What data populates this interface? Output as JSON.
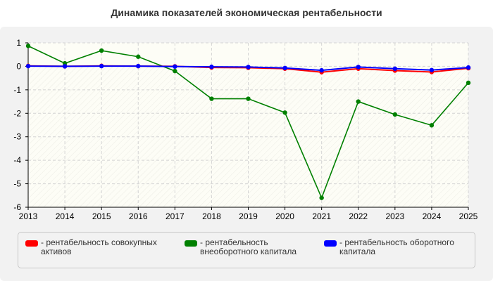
{
  "chart_data": {
    "type": "line",
    "title": "Динамика показателей экономическая рентабельности",
    "x": [
      "2013",
      "2014",
      "2015",
      "2016",
      "2017",
      "2018",
      "2019",
      "2020",
      "2021",
      "2022",
      "2023",
      "2024",
      "2025"
    ],
    "ylim": [
      -6,
      1
    ],
    "yticks": [
      1,
      0,
      -1,
      -2,
      -3,
      -4,
      -5,
      -6
    ],
    "grid": true,
    "legend_position": "bottom",
    "series": [
      {
        "name": "- рентабельность совокупных активов",
        "color": "#ff0000",
        "values": [
          0.02,
          0.0,
          0.02,
          0.01,
          0.0,
          -0.05,
          -0.06,
          -0.1,
          -0.25,
          -0.1,
          -0.18,
          -0.24,
          -0.08
        ]
      },
      {
        "name": "- рентабельность внеоборотного капитала",
        "color": "#008000",
        "values": [
          0.87,
          0.13,
          0.67,
          0.41,
          -0.2,
          -1.38,
          -1.38,
          -1.97,
          -5.6,
          -1.5,
          -2.05,
          -2.51,
          -0.7
        ]
      },
      {
        "name": "- рентабельность оборотного капитала",
        "color": "#0000ff",
        "values": [
          0.01,
          0.0,
          0.01,
          0.01,
          -0.01,
          -0.02,
          -0.03,
          -0.07,
          -0.17,
          -0.03,
          -0.1,
          -0.16,
          -0.05
        ]
      }
    ]
  }
}
